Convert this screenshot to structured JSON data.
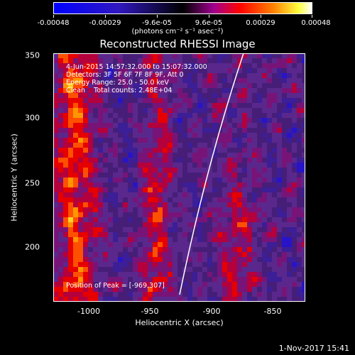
{
  "colorbar": {
    "tick_labels": [
      "-0.00048",
      "-0.00029",
      "-9.6e-05",
      "9.6e-05",
      "0.00029",
      "0.00048"
    ],
    "unit": "(photons cm⁻² s⁻¹ asec⁻²)",
    "min": -0.00048,
    "max": 0.00048
  },
  "image": {
    "title": "Reconstructed RHESSI Image",
    "xlabel": "Heliocentric X (arcsec)",
    "ylabel": "Heliocentric Y (arcsec)",
    "x_ticks": [
      "-1000",
      "-950",
      "-900",
      "-850"
    ],
    "y_ticks": [
      "350",
      "300",
      "250",
      "200"
    ],
    "x_range": [
      -1025,
      -830
    ],
    "y_range": [
      155,
      352
    ],
    "info": {
      "time": "4-Jun-2015 14:57:32.000 to 15:07:32.000",
      "detectors": "Detectors: 3F 5F 6F 7F 8F 9F, Att 0",
      "energy": "Energy Range: 25.0 - 50.0 keV",
      "method": "Clean    Total counts: 2.48E+04"
    },
    "peak": "Position of Peak = [-969,307]"
  },
  "timestamp": "1-Nov-2017 15:41"
}
